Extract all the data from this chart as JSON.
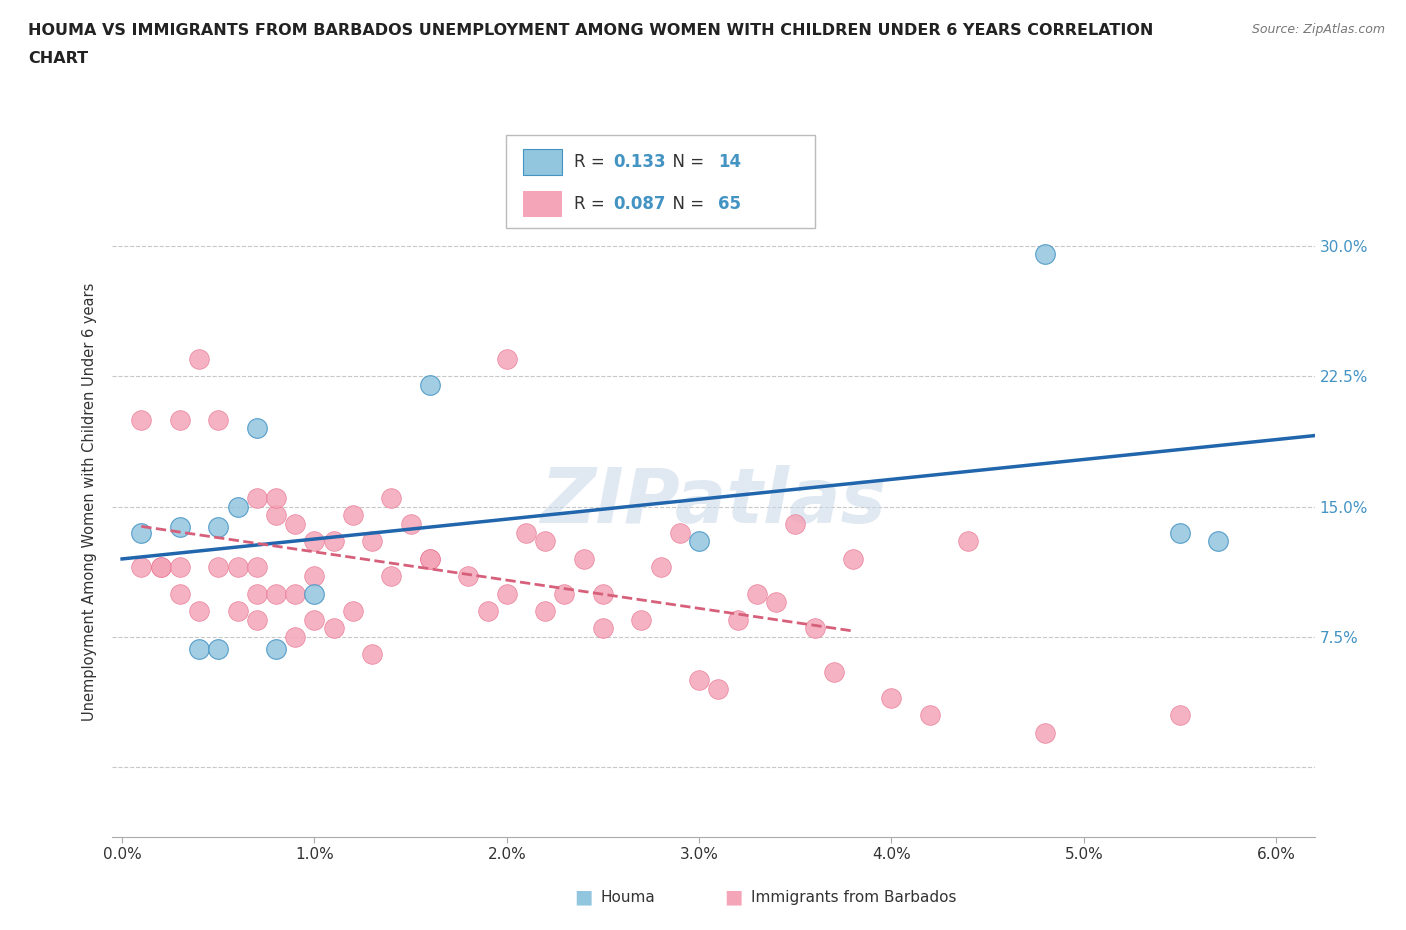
{
  "title_line1": "HOUMA VS IMMIGRANTS FROM BARBADOS UNEMPLOYMENT AMONG WOMEN WITH CHILDREN UNDER 6 YEARS CORRELATION",
  "title_line2": "CHART",
  "source": "Source: ZipAtlas.com",
  "ylabel": "Unemployment Among Women with Children Under 6 years",
  "xlim": [
    -0.0005,
    0.062
  ],
  "ylim": [
    -0.04,
    0.345
  ],
  "xticks": [
    0.0,
    0.01,
    0.02,
    0.03,
    0.04,
    0.05,
    0.06
  ],
  "xtick_labels": [
    "0.0%",
    "1.0%",
    "2.0%",
    "3.0%",
    "4.0%",
    "5.0%",
    "6.0%"
  ],
  "yticks": [
    0.0,
    0.075,
    0.15,
    0.225,
    0.3
  ],
  "ytick_labels_right": [
    "",
    "7.5%",
    "15.0%",
    "22.5%",
    "30.0%"
  ],
  "houma_color": "#92c5de",
  "houma_edge_color": "#4393c3",
  "barbados_color": "#f4a5b8",
  "barbados_edge_color": "#e8728e",
  "houma_line_color": "#2166ac",
  "barbados_line_color": "#d6607a",
  "legend_R_houma": "0.133",
  "legend_N_houma": "14",
  "legend_R_barbados": "0.087",
  "legend_N_barbados": "65",
  "legend_color": "#4393c3",
  "houma_x": [
    0.001,
    0.003,
    0.004,
    0.005,
    0.005,
    0.006,
    0.007,
    0.008,
    0.01,
    0.016,
    0.03,
    0.048,
    0.055,
    0.057
  ],
  "houma_y": [
    0.135,
    0.138,
    0.068,
    0.068,
    0.138,
    0.15,
    0.195,
    0.068,
    0.1,
    0.22,
    0.13,
    0.295,
    0.135,
    0.13
  ],
  "barbados_x": [
    0.001,
    0.001,
    0.002,
    0.002,
    0.003,
    0.003,
    0.003,
    0.004,
    0.004,
    0.005,
    0.005,
    0.006,
    0.006,
    0.007,
    0.007,
    0.007,
    0.007,
    0.008,
    0.008,
    0.008,
    0.009,
    0.009,
    0.009,
    0.01,
    0.01,
    0.01,
    0.011,
    0.011,
    0.012,
    0.012,
    0.013,
    0.013,
    0.014,
    0.014,
    0.015,
    0.016,
    0.016,
    0.018,
    0.019,
    0.02,
    0.02,
    0.021,
    0.022,
    0.022,
    0.023,
    0.024,
    0.025,
    0.025,
    0.027,
    0.028,
    0.029,
    0.03,
    0.031,
    0.032,
    0.033,
    0.034,
    0.035,
    0.036,
    0.037,
    0.038,
    0.04,
    0.042,
    0.044,
    0.048,
    0.055
  ],
  "barbados_y": [
    0.115,
    0.2,
    0.115,
    0.115,
    0.1,
    0.115,
    0.2,
    0.235,
    0.09,
    0.115,
    0.2,
    0.09,
    0.115,
    0.115,
    0.1,
    0.085,
    0.155,
    0.1,
    0.145,
    0.155,
    0.075,
    0.1,
    0.14,
    0.085,
    0.11,
    0.13,
    0.08,
    0.13,
    0.09,
    0.145,
    0.065,
    0.13,
    0.11,
    0.155,
    0.14,
    0.12,
    0.12,
    0.11,
    0.09,
    0.1,
    0.235,
    0.135,
    0.09,
    0.13,
    0.1,
    0.12,
    0.08,
    0.1,
    0.085,
    0.115,
    0.135,
    0.05,
    0.045,
    0.085,
    0.1,
    0.095,
    0.14,
    0.08,
    0.055,
    0.12,
    0.04,
    0.03,
    0.13,
    0.02,
    0.03
  ],
  "background_color": "#ffffff",
  "grid_color": "#c8c8c8",
  "watermark": "ZIPatlas"
}
